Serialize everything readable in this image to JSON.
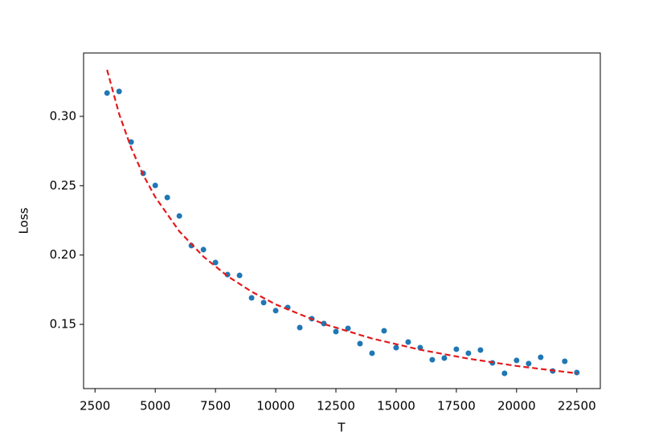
{
  "chart_data": {
    "type": "scatter",
    "xlabel": "T",
    "ylabel": "Loss",
    "x": [
      3000,
      3500,
      4000,
      4500,
      5000,
      5500,
      6000,
      6500,
      7000,
      7500,
      8000,
      8500,
      9000,
      9500,
      10000,
      10500,
      11000,
      11500,
      12000,
      12500,
      13000,
      13500,
      14000,
      14500,
      15000,
      15500,
      16000,
      16500,
      17000,
      17500,
      18000,
      18500,
      19000,
      19500,
      20000,
      20500,
      21000,
      21500,
      22000,
      22500
    ],
    "series": [
      {
        "type": "scatter",
        "color": "#1f77b4",
        "values": [
          0.3168,
          0.318,
          0.2815,
          0.2589,
          0.2502,
          0.2415,
          0.2282,
          0.2068,
          0.2039,
          0.1946,
          0.1859,
          0.1853,
          0.1691,
          0.1657,
          0.1599,
          0.1622,
          0.1477,
          0.1541,
          0.1506,
          0.1448,
          0.1471,
          0.1361,
          0.1292,
          0.1454,
          0.1332,
          0.1373,
          0.1332,
          0.1245,
          0.1257,
          0.1321,
          0.1292,
          0.1315,
          0.1222,
          0.1147,
          0.124,
          0.1217,
          0.1263,
          0.1164,
          0.1234,
          0.1153
        ]
      },
      {
        "type": "line",
        "color": "#e31a1c",
        "dashed": true,
        "x": [
          3000,
          3500,
          4000,
          4500,
          5000,
          6000,
          7000,
          8000,
          9000,
          10000,
          12000,
          14000,
          16000,
          18000,
          20000,
          22500
        ],
        "values": [
          0.3336,
          0.3018,
          0.2773,
          0.2578,
          0.2418,
          0.2171,
          0.1989,
          0.1848,
          0.1736,
          0.1644,
          0.1503,
          0.1398,
          0.1317,
          0.1253,
          0.12,
          0.1147
        ]
      }
    ],
    "xlim": [
      2025,
      23475
    ],
    "ylim": [
      0.1037,
      0.3457
    ],
    "xticks": [
      2500,
      5000,
      7500,
      10000,
      12500,
      15000,
      17500,
      20000,
      22500
    ],
    "yticks": [
      0.15,
      {
        "value": 0.2,
        "label": "0.20"
      },
      0.25,
      {
        "value": 0.3,
        "label": "0.30"
      }
    ],
    "grid": false
  }
}
